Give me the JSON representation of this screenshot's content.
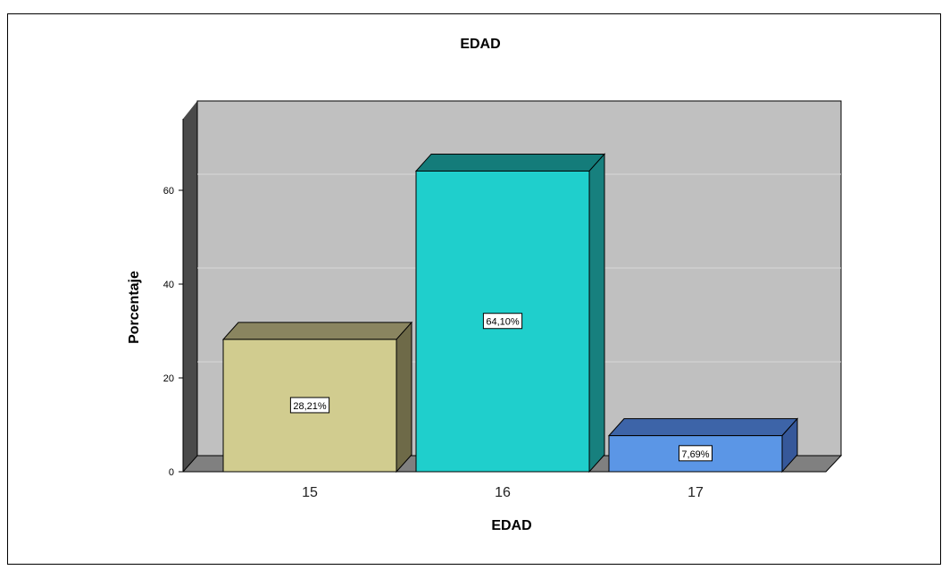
{
  "chart_data": {
    "type": "bar",
    "title": "EDAD",
    "xlabel": "EDAD",
    "ylabel": "Porcentaje",
    "categories": [
      "15",
      "16",
      "17"
    ],
    "values": [
      28.21,
      64.1,
      7.69
    ],
    "data_labels": [
      "28,21%",
      "64,10%",
      "7,69%"
    ],
    "yticks": [
      "0",
      "20",
      "40",
      "60"
    ],
    "ylim": [
      0,
      78
    ],
    "grid": true,
    "style": "3d",
    "colors": {
      "background_wall": "#c0c0c0",
      "floor": "#808080",
      "bars": [
        {
          "front": "#d1cc8f",
          "top": "#8a8560",
          "side": "#6e6a48"
        },
        {
          "front": "#1fcfcc",
          "top": "#147c7a",
          "side": "#17807e"
        },
        {
          "front": "#5b96e6",
          "top": "#3d64a8",
          "side": "#36589a"
        }
      ]
    }
  }
}
